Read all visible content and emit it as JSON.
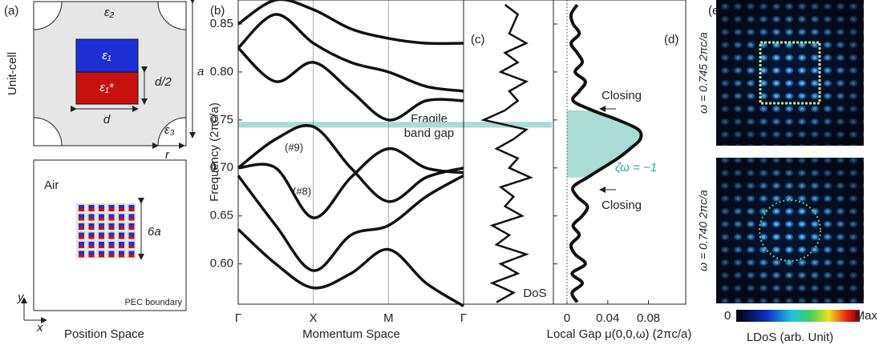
{
  "panel_labels": [
    "(a)",
    "(b)",
    "(c)",
    "(d)",
    "(e)"
  ],
  "unit_cell": {
    "title": "Unit-cell",
    "eps2": "ε₂",
    "eps1": "ε₁",
    "eps1_star": "ε₁*",
    "half_d": "d/2",
    "d": "d",
    "a": "a",
    "eps3": "ε₃",
    "r": "r"
  },
  "position": {
    "air": "Air",
    "size": "6a",
    "boundary": "PEC boundary",
    "x": "x",
    "y": "y",
    "title": "Position Space"
  },
  "chart_data": [
    {
      "type": "line",
      "ylabel": "Frequency (2πc/a)",
      "xlabel": "Momentum Space",
      "x": [
        0,
        0.5,
        1,
        1.5,
        2,
        2.5,
        3
      ],
      "xlim": [
        0,
        3
      ],
      "xticks": [
        {
          "value": 0,
          "label": "Γ"
        },
        {
          "value": 1,
          "label": "X"
        },
        {
          "value": 2,
          "label": "M"
        },
        {
          "value": 3,
          "label": "Γ"
        }
      ],
      "ylim": [
        0.558,
        0.875
      ],
      "yticks": [
        {
          "value": 0.6,
          "label": "0.60"
        },
        0.65,
        {
          "value": 0.7,
          "label": "0.70"
        },
        0.75,
        {
          "value": 0.8,
          "label": "0.80"
        },
        0.85
      ],
      "color": "#111",
      "series": [
        {
          "values": [
            0.636,
            0.6,
            0.575,
            0.59,
            0.615,
            0.58,
            0.556
          ]
        },
        {
          "values": [
            0.692,
            0.64,
            0.593,
            0.63,
            0.64,
            0.67,
            0.692
          ]
        },
        {
          "values": [
            0.7,
            0.7,
            0.648,
            0.69,
            0.72,
            0.7,
            0.695
          ]
        },
        {
          "values": [
            0.7,
            0.73,
            0.743,
            0.7,
            0.665,
            0.69,
            0.7
          ]
        },
        {
          "values": [
            0.825,
            0.79,
            0.81,
            0.78,
            0.75,
            0.77,
            0.77
          ]
        },
        {
          "values": [
            0.825,
            0.86,
            0.83,
            0.81,
            0.8,
            0.785,
            0.78
          ]
        },
        {
          "values": [
            0.85,
            0.875,
            0.865,
            0.845,
            0.835,
            0.83,
            0.83
          ]
        }
      ],
      "fragile_gap": [
        0.742,
        0.748
      ],
      "gap_color": "#a8dcd4",
      "annotations": [
        "Fragile",
        "band gap",
        "(#9)",
        "(#8)"
      ]
    },
    {
      "type": "line",
      "label": "DoS",
      "xlim": [
        0,
        1
      ],
      "frequency": [
        0.56,
        0.57,
        0.58,
        0.59,
        0.6,
        0.61,
        0.62,
        0.63,
        0.64,
        0.65,
        0.66,
        0.67,
        0.68,
        0.69,
        0.7,
        0.71,
        0.72,
        0.73,
        0.74,
        0.75,
        0.76,
        0.77,
        0.78,
        0.79,
        0.8,
        0.81,
        0.82,
        0.83,
        0.84,
        0.85,
        0.86,
        0.87
      ],
      "values": [
        0.35,
        0.55,
        0.3,
        0.6,
        0.4,
        0.7,
        0.35,
        0.5,
        0.3,
        0.65,
        0.45,
        0.55,
        0.4,
        0.75,
        0.5,
        0.6,
        0.35,
        0.55,
        0.7,
        0.2,
        0.45,
        0.6,
        0.5,
        0.7,
        0.4,
        0.6,
        0.45,
        0.7,
        0.5,
        0.55,
        0.6,
        0.45
      ]
    },
    {
      "type": "line",
      "xlabel": "Local Gap μ(0,0,ω) (2πc/a)",
      "xlim": [
        -0.0134,
        0.1166
      ],
      "xticks": [
        0,
        0.04,
        0.08
      ],
      "frequency": [
        0.56,
        0.57,
        0.58,
        0.59,
        0.6,
        0.61,
        0.62,
        0.63,
        0.64,
        0.65,
        0.66,
        0.67,
        0.68,
        0.69,
        0.7,
        0.71,
        0.72,
        0.73,
        0.74,
        0.75,
        0.76,
        0.77,
        0.78,
        0.79,
        0.8,
        0.81,
        0.82,
        0.83,
        0.84,
        0.85,
        0.86,
        0.87
      ],
      "values": [
        0.01,
        0.005,
        0.015,
        0.005,
        0.018,
        0.008,
        0.004,
        0.012,
        0.006,
        0.015,
        0.02,
        0.01,
        0.006,
        0.02,
        0.035,
        0.05,
        0.062,
        0.072,
        0.07,
        0.05,
        0.025,
        0.006,
        0.012,
        0.018,
        0.008,
        0.015,
        0.01,
        0.004,
        0.012,
        0.006,
        0.004,
        0.01
      ],
      "fill_range": [
        0.69,
        0.76
      ],
      "fill_color": "#a8dcd4",
      "annotations": [
        "Closing",
        "Closing",
        "ζω = −1"
      ],
      "annotation_color": "#2aa89a"
    }
  ],
  "ldos": {
    "labels": [
      "ω = 0.745 2πc/a",
      "ω = 0.740 2πc/a"
    ],
    "colorbar_min": "0",
    "colorbar_max": "Max",
    "title": "LDoS (arb. Unit)"
  }
}
